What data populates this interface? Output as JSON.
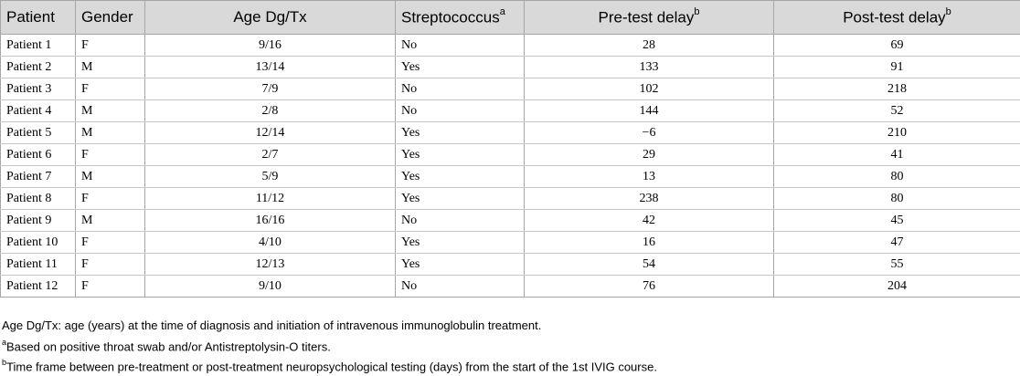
{
  "table": {
    "headers": {
      "patient": "Patient",
      "gender": "Gender",
      "age": "Age Dg/Tx",
      "strep": "Streptococcus",
      "strep_sup": "a",
      "pre": "Pre-test delay",
      "pre_sup": "b",
      "post": "Post-test delay",
      "post_sup": "b"
    },
    "rows": [
      {
        "patient": "Patient 1",
        "gender": "F",
        "age": "9/16",
        "strep": "No",
        "pre": "28",
        "post": "69"
      },
      {
        "patient": "Patient 2",
        "gender": "M",
        "age": "13/14",
        "strep": "Yes",
        "pre": "133",
        "post": "91"
      },
      {
        "patient": "Patient 3",
        "gender": "F",
        "age": "7/9",
        "strep": "No",
        "pre": "102",
        "post": "218"
      },
      {
        "patient": "Patient 4",
        "gender": "M",
        "age": "2/8",
        "strep": "No",
        "pre": "144",
        "post": "52"
      },
      {
        "patient": "Patient 5",
        "gender": "M",
        "age": "12/14",
        "strep": "Yes",
        "pre": "−6",
        "post": "210"
      },
      {
        "patient": "Patient 6",
        "gender": "F",
        "age": "2/7",
        "strep": "Yes",
        "pre": "29",
        "post": "41"
      },
      {
        "patient": "Patient 7",
        "gender": "M",
        "age": "5/9",
        "strep": "Yes",
        "pre": "13",
        "post": "80"
      },
      {
        "patient": "Patient 8",
        "gender": "F",
        "age": "11/12",
        "strep": "Yes",
        "pre": "238",
        "post": "80"
      },
      {
        "patient": "Patient 9",
        "gender": "M",
        "age": "16/16",
        "strep": "No",
        "pre": "42",
        "post": "45"
      },
      {
        "patient": "Patient 10",
        "gender": "F",
        "age": "4/10",
        "strep": "Yes",
        "pre": "16",
        "post": "47"
      },
      {
        "patient": "Patient 11",
        "gender": "F",
        "age": "12/13",
        "strep": "Yes",
        "pre": "54",
        "post": "55"
      },
      {
        "patient": "Patient 12",
        "gender": "F",
        "age": "9/10",
        "strep": "No",
        "pre": "76",
        "post": "204"
      }
    ]
  },
  "footnotes": {
    "abbrev": "Age Dg/Tx: age (years) at the time of diagnosis and initiation of intravenous immunoglobulin treatment.",
    "a_mark": "a",
    "a_text": "Based on positive throat swab and/or Antistreptolysin-O titers.",
    "b_mark": "b",
    "b_text": "Time frame between pre-treatment or post-treatment neuropsychological testing (days) from the start of the 1st IVIG course."
  },
  "colors": {
    "header_bg": "#d9d9d9",
    "border": "#a6a6a6"
  }
}
